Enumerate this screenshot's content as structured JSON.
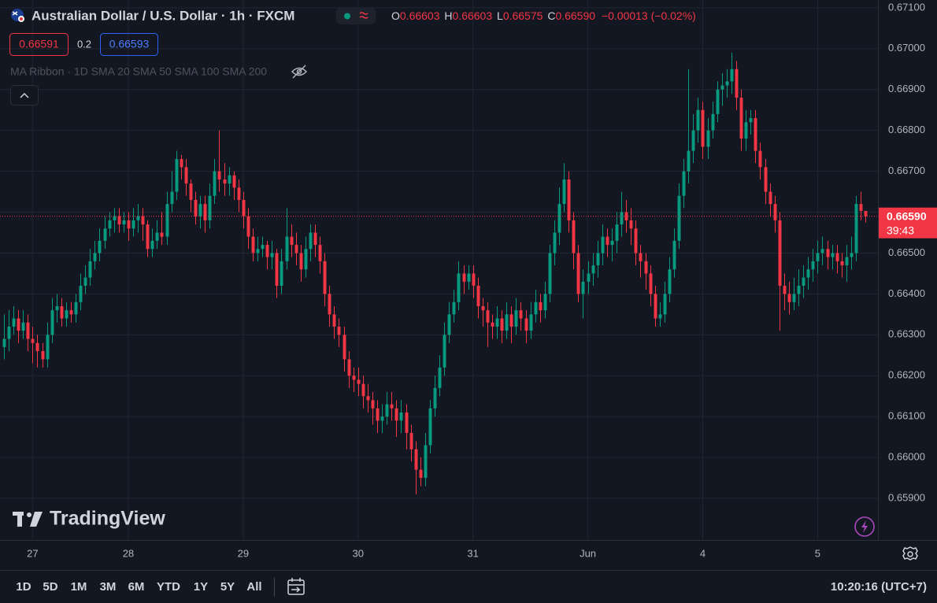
{
  "header": {
    "symbol_title": "Australian Dollar / U.S. Dollar · 1h · FXCM",
    "ohlc_labels": [
      "O",
      "H",
      "L",
      "C"
    ],
    "change": "−0.00013 (−0.02%)",
    "sell_price": "0.66591",
    "spread": "0.2",
    "buy_price": "0.66593",
    "indicator": "MA Ribbon · 1D SMA 20 SMA 50 SMA 100 SMA 200"
  },
  "chart_data": {
    "type": "candlestick",
    "up_color": "#089981",
    "down_color": "#f23645",
    "grid": true,
    "watermark": "TradingView",
    "last_price_label": "0.66590",
    "countdown": "39:43",
    "xlim": [
      -0.8,
      182.6
    ],
    "xticks": [
      {
        "value": 6,
        "label": "27"
      },
      {
        "value": 26,
        "label": "28"
      },
      {
        "value": 50,
        "label": "29"
      },
      {
        "value": 74,
        "label": "30"
      },
      {
        "value": 98,
        "label": "31"
      },
      {
        "value": 122,
        "label": "Jun"
      },
      {
        "value": 146,
        "label": "4"
      },
      {
        "value": 170,
        "label": "5"
      }
    ],
    "ylim": [
      0.65798,
      0.67119
    ],
    "yticks": [
      {
        "value": 0.659,
        "label": "0.65900"
      },
      {
        "value": 0.66,
        "label": "0.66000"
      },
      {
        "value": 0.661,
        "label": "0.66100"
      },
      {
        "value": 0.662,
        "label": "0.66200"
      },
      {
        "value": 0.663,
        "label": "0.66300"
      },
      {
        "value": 0.664,
        "label": "0.66400"
      },
      {
        "value": 0.665,
        "label": "0.66500"
      },
      {
        "value": 0.666,
        "label": "0.66600"
      },
      {
        "value": 0.667,
        "label": "0.66700"
      },
      {
        "value": 0.668,
        "label": "0.66800"
      },
      {
        "value": 0.669,
        "label": "0.66900"
      },
      {
        "value": 0.67,
        "label": "0.67000"
      },
      {
        "value": 0.671,
        "label": "0.67100"
      }
    ],
    "open": [
      0.6627,
      0.6629,
      0.6632,
      0.6634,
      0.6631,
      0.6633,
      0.6629,
      0.6628,
      0.6626,
      0.6624,
      0.663,
      0.6636,
      0.6637,
      0.6634,
      0.6636,
      0.6635,
      0.6638,
      0.6642,
      0.6644,
      0.6648,
      0.665,
      0.6653,
      0.6656,
      0.6658,
      0.6659,
      0.6657,
      0.6658,
      0.6656,
      0.6658,
      0.6659,
      0.6657,
      0.6651,
      0.6653,
      0.6655,
      0.6654,
      0.6662,
      0.6665,
      0.6673,
      0.6671,
      0.6667,
      0.6663,
      0.6659,
      0.6662,
      0.6658,
      0.6664,
      0.667,
      0.6668,
      0.6667,
      0.6669,
      0.6666,
      0.6663,
      0.6659,
      0.6654,
      0.665,
      0.6651,
      0.6652,
      0.6649,
      0.665,
      0.6642,
      0.6648,
      0.6654,
      0.6652,
      0.665,
      0.6646,
      0.6651,
      0.6655,
      0.6652,
      0.6648,
      0.664,
      0.6635,
      0.6632,
      0.663,
      0.6624,
      0.662,
      0.6619,
      0.6618,
      0.6615,
      0.6614,
      0.6612,
      0.6609,
      0.661,
      0.6613,
      0.6612,
      0.6609,
      0.6611,
      0.6606,
      0.6602,
      0.6597,
      0.6595,
      0.6603,
      0.6612,
      0.6617,
      0.6622,
      0.663,
      0.6635,
      0.6638,
      0.6645,
      0.6643,
      0.6645,
      0.6642,
      0.6637,
      0.6636,
      0.6633,
      0.6632,
      0.6634,
      0.6631,
      0.6635,
      0.6632,
      0.6636,
      0.6634,
      0.6631,
      0.6635,
      0.6638,
      0.6636,
      0.664,
      0.665,
      0.6655,
      0.6662,
      0.6668,
      0.6658,
      0.665,
      0.664,
      0.6643,
      0.6645,
      0.6647,
      0.665,
      0.6654,
      0.6652,
      0.6653,
      0.6657,
      0.666,
      0.6658,
      0.6656,
      0.665,
      0.6648,
      0.6645,
      0.664,
      0.6634,
      0.6635,
      0.664,
      0.6646,
      0.6653,
      0.6664,
      0.667,
      0.6675,
      0.668,
      0.6685,
      0.6676,
      0.668,
      0.6684,
      0.669,
      0.6691,
      0.6692,
      0.6695,
      0.6688,
      0.6678,
      0.6682,
      0.6683,
      0.6675,
      0.6671,
      0.6665,
      0.6662,
      0.6658,
      0.6642,
      0.664,
      0.6638,
      0.664,
      0.6642,
      0.6644,
      0.6646,
      0.6648,
      0.665,
      0.6651,
      0.6649,
      0.665,
      0.6648,
      0.6647,
      0.6649,
      0.665,
      0.6662,
      0.66603
    ],
    "high": [
      0.6635,
      0.6636,
      0.6637,
      0.6636,
      0.6636,
      0.6635,
      0.6632,
      0.663,
      0.6628,
      0.6633,
      0.6639,
      0.664,
      0.6639,
      0.6638,
      0.6638,
      0.664,
      0.6645,
      0.6647,
      0.6651,
      0.6653,
      0.6656,
      0.6659,
      0.666,
      0.6661,
      0.6661,
      0.666,
      0.666,
      0.6661,
      0.6662,
      0.6661,
      0.6658,
      0.6656,
      0.6658,
      0.666,
      0.6665,
      0.667,
      0.6675,
      0.6674,
      0.6673,
      0.6668,
      0.6665,
      0.6664,
      0.6664,
      0.6667,
      0.6673,
      0.668,
      0.6672,
      0.6671,
      0.667,
      0.6668,
      0.6665,
      0.6661,
      0.6656,
      0.6654,
      0.6654,
      0.6653,
      0.6653,
      0.6651,
      0.6651,
      0.6661,
      0.6657,
      0.6655,
      0.6652,
      0.6654,
      0.6657,
      0.6657,
      0.6654,
      0.665,
      0.6642,
      0.6637,
      0.6634,
      0.6632,
      0.6626,
      0.6622,
      0.6622,
      0.662,
      0.6618,
      0.6616,
      0.6614,
      0.6613,
      0.6616,
      0.6616,
      0.6614,
      0.6614,
      0.6613,
      0.6608,
      0.6604,
      0.66,
      0.6606,
      0.6614,
      0.662,
      0.6625,
      0.6633,
      0.6638,
      0.6641,
      0.6648,
      0.6647,
      0.6647,
      0.6647,
      0.6644,
      0.6639,
      0.6638,
      0.6635,
      0.6637,
      0.6636,
      0.6638,
      0.6637,
      0.6639,
      0.6638,
      0.6636,
      0.6638,
      0.6641,
      0.664,
      0.6643,
      0.6652,
      0.6658,
      0.6666,
      0.6672,
      0.667,
      0.666,
      0.6652,
      0.6646,
      0.6648,
      0.665,
      0.6653,
      0.6657,
      0.6656,
      0.6656,
      0.666,
      0.6665,
      0.6663,
      0.6661,
      0.6658,
      0.6652,
      0.665,
      0.6647,
      0.6642,
      0.6638,
      0.6643,
      0.6649,
      0.6656,
      0.6667,
      0.6673,
      0.6695,
      0.6684,
      0.6688,
      0.6687,
      0.6683,
      0.6687,
      0.6692,
      0.6694,
      0.6695,
      0.6699,
      0.6697,
      0.669,
      0.6685,
      0.6685,
      0.6685,
      0.6677,
      0.6673,
      0.6667,
      0.6664,
      0.666,
      0.6645,
      0.6643,
      0.6644,
      0.6646,
      0.6647,
      0.6649,
      0.6651,
      0.6653,
      0.6654,
      0.6653,
      0.6652,
      0.6652,
      0.665,
      0.6652,
      0.6654,
      0.6664,
      0.6665,
      0.66603
    ],
    "low": [
      0.6624,
      0.6626,
      0.663,
      0.6628,
      0.6629,
      0.6626,
      0.6623,
      0.6622,
      0.6622,
      0.6622,
      0.6628,
      0.6633,
      0.6632,
      0.6632,
      0.6633,
      0.6633,
      0.6636,
      0.664,
      0.6642,
      0.6646,
      0.6648,
      0.6651,
      0.6654,
      0.6655,
      0.6655,
      0.6655,
      0.6653,
      0.6654,
      0.6655,
      0.6653,
      0.6649,
      0.6649,
      0.6651,
      0.6652,
      0.6652,
      0.666,
      0.6663,
      0.6668,
      0.6664,
      0.666,
      0.6657,
      0.6656,
      0.6655,
      0.6656,
      0.6662,
      0.6665,
      0.6664,
      0.6664,
      0.6663,
      0.666,
      0.6656,
      0.6651,
      0.6648,
      0.6648,
      0.6649,
      0.6646,
      0.6646,
      0.6639,
      0.664,
      0.6646,
      0.6649,
      0.6647,
      0.6643,
      0.6644,
      0.6648,
      0.6649,
      0.6645,
      0.6637,
      0.6632,
      0.6629,
      0.6627,
      0.6621,
      0.6617,
      0.6616,
      0.6615,
      0.6612,
      0.6611,
      0.6608,
      0.6606,
      0.6606,
      0.6608,
      0.6609,
      0.6605,
      0.6606,
      0.6602,
      0.6599,
      0.6591,
      0.6593,
      0.6593,
      0.6601,
      0.661,
      0.6615,
      0.662,
      0.6628,
      0.6633,
      0.6636,
      0.664,
      0.6641,
      0.6639,
      0.6634,
      0.6632,
      0.6627,
      0.6629,
      0.6629,
      0.6628,
      0.6629,
      0.6628,
      0.663,
      0.6631,
      0.6628,
      0.6629,
      0.6633,
      0.6633,
      0.6634,
      0.6638,
      0.6647,
      0.6652,
      0.666,
      0.6655,
      0.6646,
      0.6638,
      0.6634,
      0.664,
      0.6642,
      0.6644,
      0.6647,
      0.6649,
      0.6648,
      0.665,
      0.6654,
      0.6655,
      0.6652,
      0.6647,
      0.6644,
      0.6641,
      0.6637,
      0.6632,
      0.6632,
      0.6633,
      0.6638,
      0.6644,
      0.6651,
      0.6661,
      0.6667,
      0.6672,
      0.6677,
      0.6673,
      0.6673,
      0.6678,
      0.6682,
      0.6686,
      0.6688,
      0.6689,
      0.6685,
      0.6675,
      0.6675,
      0.6679,
      0.6672,
      0.6668,
      0.6662,
      0.6659,
      0.6655,
      0.6631,
      0.6636,
      0.6635,
      0.6636,
      0.6637,
      0.6639,
      0.6641,
      0.6643,
      0.6645,
      0.6647,
      0.6646,
      0.6646,
      0.6645,
      0.6644,
      0.6643,
      0.6646,
      0.6648,
      0.6658,
      0.66575
    ],
    "close": [
      0.6629,
      0.6632,
      0.6634,
      0.6631,
      0.6633,
      0.6629,
      0.6628,
      0.6626,
      0.6624,
      0.663,
      0.6636,
      0.6637,
      0.6634,
      0.6636,
      0.6635,
      0.6638,
      0.6642,
      0.6644,
      0.6648,
      0.665,
      0.6653,
      0.6656,
      0.6658,
      0.6659,
      0.6657,
      0.6658,
      0.6656,
      0.6658,
      0.6659,
      0.6657,
      0.6651,
      0.6653,
      0.6655,
      0.6654,
      0.6662,
      0.6665,
      0.6673,
      0.6671,
      0.6667,
      0.6663,
      0.6659,
      0.6662,
      0.6658,
      0.6664,
      0.667,
      0.6668,
      0.6667,
      0.6669,
      0.6666,
      0.6663,
      0.6659,
      0.6654,
      0.665,
      0.6651,
      0.6652,
      0.6649,
      0.665,
      0.6642,
      0.6648,
      0.6654,
      0.6652,
      0.665,
      0.6646,
      0.6651,
      0.6655,
      0.6652,
      0.6648,
      0.664,
      0.6635,
      0.6632,
      0.663,
      0.6624,
      0.662,
      0.6619,
      0.6618,
      0.6615,
      0.6614,
      0.6612,
      0.6609,
      0.661,
      0.6613,
      0.6612,
      0.6609,
      0.6611,
      0.6606,
      0.6602,
      0.6597,
      0.6595,
      0.6603,
      0.6612,
      0.6617,
      0.6622,
      0.663,
      0.6635,
      0.6638,
      0.6645,
      0.6643,
      0.6645,
      0.6642,
      0.6637,
      0.6636,
      0.6633,
      0.6632,
      0.6634,
      0.6631,
      0.6635,
      0.6632,
      0.6636,
      0.6634,
      0.6631,
      0.6635,
      0.6638,
      0.6636,
      0.664,
      0.665,
      0.6655,
      0.6662,
      0.6668,
      0.6658,
      0.665,
      0.664,
      0.6643,
      0.6645,
      0.6647,
      0.665,
      0.6654,
      0.6652,
      0.6653,
      0.6657,
      0.666,
      0.6658,
      0.6656,
      0.665,
      0.6648,
      0.6645,
      0.664,
      0.6634,
      0.6635,
      0.664,
      0.6646,
      0.6653,
      0.6664,
      0.667,
      0.6675,
      0.668,
      0.6685,
      0.6676,
      0.668,
      0.6684,
      0.669,
      0.6691,
      0.6692,
      0.6695,
      0.6688,
      0.6678,
      0.6682,
      0.6683,
      0.6675,
      0.6671,
      0.6665,
      0.6662,
      0.6658,
      0.6642,
      0.664,
      0.6638,
      0.664,
      0.6642,
      0.6644,
      0.6646,
      0.6648,
      0.665,
      0.6651,
      0.6649,
      0.665,
      0.6648,
      0.6647,
      0.6649,
      0.665,
      0.6662,
      0.66603,
      0.6659
    ]
  },
  "toolbar": {
    "ranges": [
      "1D",
      "5D",
      "1M",
      "3M",
      "6M",
      "YTD",
      "1Y",
      "5Y",
      "All"
    ],
    "clock": "10:20:16 (UTC+7)"
  }
}
